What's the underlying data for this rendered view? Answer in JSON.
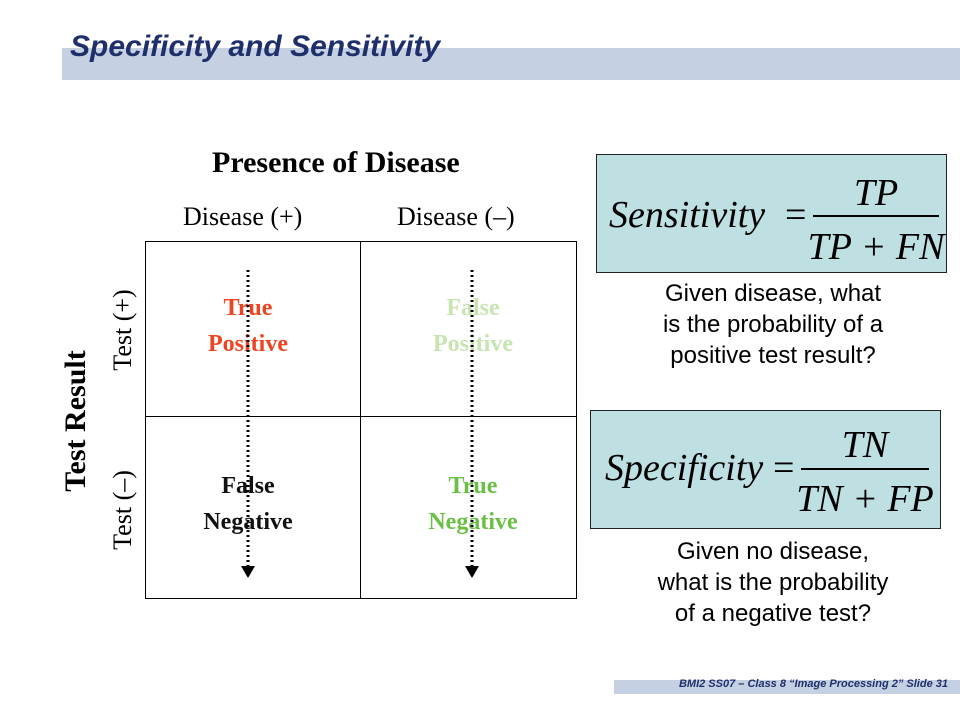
{
  "slide": {
    "title": "Specificity and Sensitivity",
    "footer": "BMI2 SS07 – Class 8 “Image Processing 2” Slide 31"
  },
  "matrix": {
    "heading": "Presence of Disease",
    "col_labels": [
      "Disease (+)",
      "Disease  (–)"
    ],
    "row_axis_label": "Test Result",
    "row_labels": [
      "Test (+)",
      "Test (–)"
    ],
    "cells": {
      "tp": [
        "True",
        "Positive"
      ],
      "fp": [
        "False",
        "Positive"
      ],
      "fn": [
        "False",
        "Negative"
      ],
      "tn": [
        "True",
        "Negative"
      ]
    },
    "colors": {
      "tp": "#ee4422",
      "fp": "#c8e4b0",
      "fn": "#111111",
      "tn": "#6abf45"
    }
  },
  "sensitivity": {
    "lhs": "Sensitivity",
    "eq": "=",
    "numerator": "TP",
    "denominator": "TP + FN",
    "description": [
      "Given disease, what",
      "is the probability of a",
      "positive test result?"
    ]
  },
  "specificity": {
    "lhs": "Specificity",
    "eq": "=",
    "numerator": "TN",
    "denominator": "TN + FP",
    "description": [
      "Given no disease,",
      "what is the probability",
      "of a negative test?"
    ]
  },
  "colors": {
    "accent_bar": "#c5d0e3",
    "title_text": "#1f2f6a",
    "formula_bg": "#bfe0e2"
  }
}
